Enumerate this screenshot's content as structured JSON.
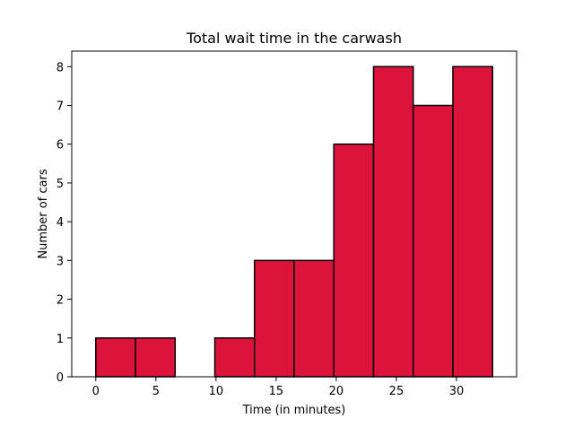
{
  "chart_data": {
    "type": "bar",
    "title": "Total wait time in the carwash",
    "xlabel": "Time (in minutes)",
    "ylabel": "Number of cars",
    "bin_edges": [
      0,
      3.3,
      6.6,
      9.9,
      13.2,
      16.5,
      19.8,
      23.1,
      26.4,
      29.7,
      33.0
    ],
    "values": [
      1,
      1,
      0,
      1,
      3,
      3,
      6,
      8,
      7,
      8
    ],
    "xlim": [
      -2,
      35
    ],
    "ylim": [
      0,
      8.4
    ],
    "xticks": [
      0,
      5,
      10,
      15,
      20,
      25,
      30
    ],
    "yticks": [
      0,
      1,
      2,
      3,
      4,
      5,
      6,
      7,
      8
    ],
    "grid": false,
    "bar_color": "#dc143c",
    "edge_color": "#000000"
  }
}
